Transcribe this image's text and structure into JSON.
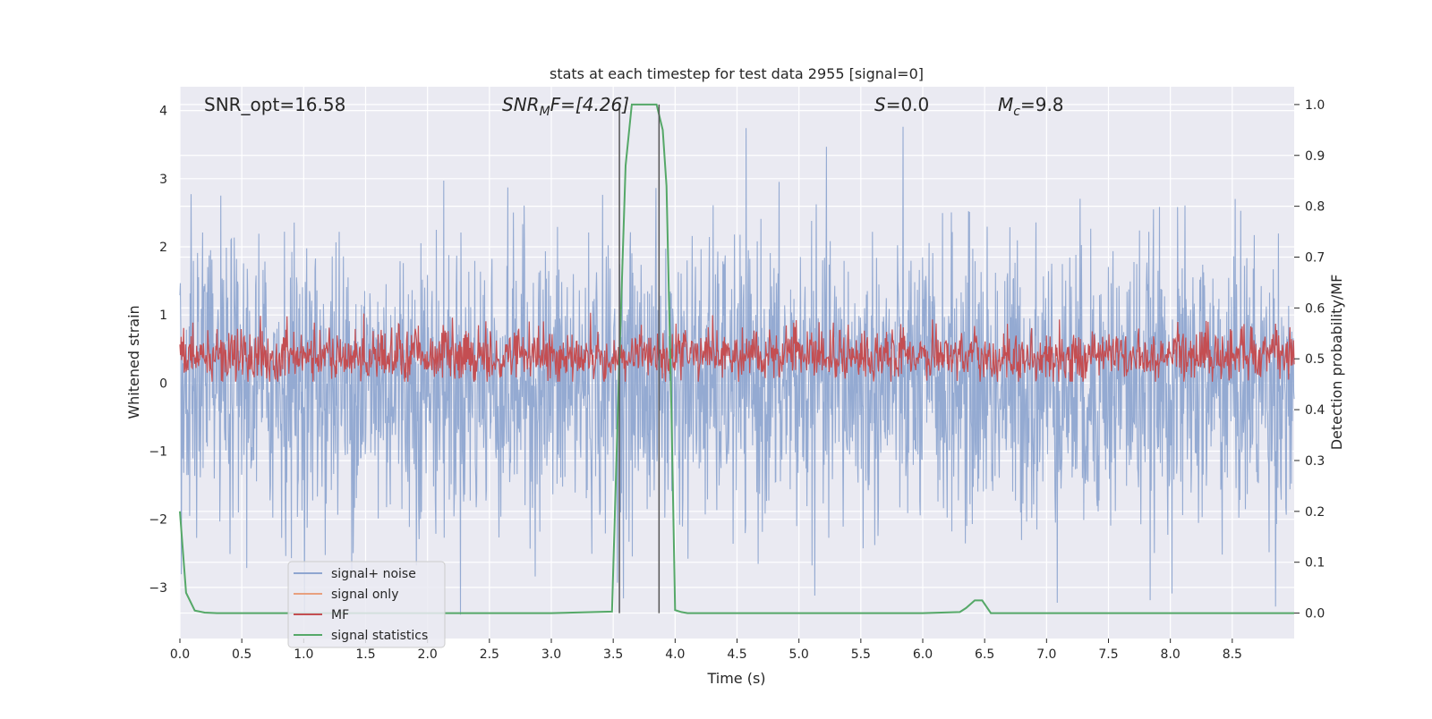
{
  "chart_data": {
    "type": "line",
    "title": "stats at each timestep for test data 2955 [signal=0]",
    "xlabel": "Time (s)",
    "ylabel_left": "Whitened strain",
    "ylabel_right": "Detection probability/MF",
    "xlim": [
      0.0,
      9.0
    ],
    "ylim_left": [
      -3.75,
      4.35
    ],
    "ylim_right": [
      -0.05,
      1.035
    ],
    "x_ticks": [
      "0.0",
      "0.5",
      "1.0",
      "1.5",
      "2.0",
      "2.5",
      "3.0",
      "3.5",
      "4.0",
      "4.5",
      "5.0",
      "5.5",
      "6.0",
      "6.5",
      "7.0",
      "7.5",
      "8.0",
      "8.5"
    ],
    "y_ticks_left": [
      "−3",
      "−2",
      "−1",
      "0",
      "1",
      "2",
      "3",
      "4"
    ],
    "y_ticks_right": [
      "0.0",
      "0.1",
      "0.2",
      "0.3",
      "0.4",
      "0.5",
      "0.6",
      "0.7",
      "0.8",
      "0.9",
      "1.0"
    ],
    "annotations": {
      "snr_opt": "SNR_opt=16.58",
      "snr_mf_prefix": "SNR",
      "snr_mf_sub": "M",
      "snr_mf_suffix": "F=[4.26]",
      "s_label": "S",
      "s_value": "=0.0",
      "mc_label": "M",
      "mc_sub": "c",
      "mc_value": "=9.8"
    },
    "legend": {
      "position": "lower-left",
      "entries": [
        "signal+ noise",
        "signal only",
        "MF",
        "signal statistics"
      ]
    },
    "series": [
      {
        "name": "signal+ noise",
        "color": "#8fa6d0",
        "axis": "left",
        "description": "whitened noise, roughly within -3.4 to 4.0"
      },
      {
        "name": "signal only",
        "color": "#e8a07e",
        "axis": "left",
        "values": []
      },
      {
        "name": "MF",
        "color": "#c44e52",
        "axis": "right",
        "description": "matched filter output around 0.5 (0.44 to 0.64)"
      },
      {
        "name": "signal statistics",
        "color": "#55a868",
        "axis": "right",
        "x": [
          0.0,
          0.05,
          0.12,
          0.2,
          0.3,
          1.0,
          2.0,
          3.0,
          3.49,
          3.55,
          3.6,
          3.65,
          3.75,
          3.85,
          3.9,
          3.93,
          3.97,
          4.0,
          4.05,
          4.1,
          5.0,
          6.0,
          6.3,
          6.35,
          6.42,
          6.48,
          6.55,
          7.0,
          8.0,
          9.0
        ],
        "y": [
          0.2,
          0.04,
          0.005,
          0.001,
          0.0,
          0.0,
          0.0,
          0.0,
          0.003,
          0.5,
          0.88,
          1.0,
          1.0,
          1.0,
          0.95,
          0.84,
          0.4,
          0.006,
          0.002,
          0.0,
          0.0,
          0.0,
          0.002,
          0.01,
          0.025,
          0.025,
          0.0,
          0.0,
          0.0,
          0.0
        ]
      }
    ],
    "vertical_lines": [
      3.55,
      3.87
    ],
    "colors": {
      "background": "#eaeaf2",
      "grid": "#ffffff",
      "noise": "#8fa6d0",
      "signal_only": "#e8a07e",
      "mf": "#c44e52",
      "stats": "#55a868",
      "vline": "#555555"
    }
  }
}
